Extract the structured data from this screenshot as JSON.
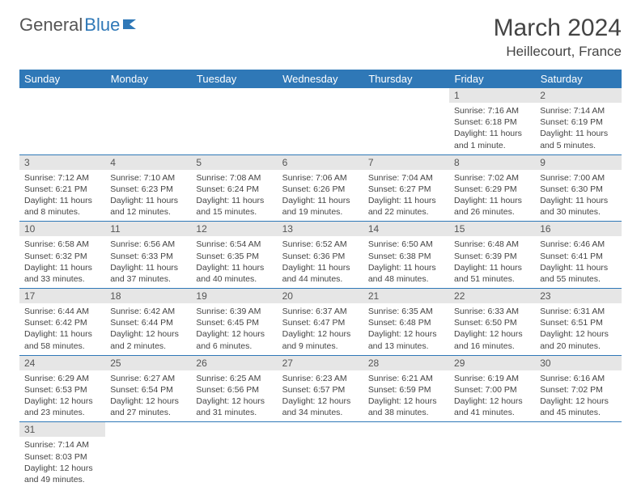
{
  "brand": {
    "part1": "General",
    "part2": "Blue"
  },
  "title": {
    "month": "March 2024",
    "location": "Heillecourt, France"
  },
  "colors": {
    "header_bg": "#2f78b7",
    "header_fg": "#ffffff",
    "daynum_bg": "#e6e6e6",
    "border": "#2f78b7",
    "text": "#444444"
  },
  "weekdays": [
    "Sunday",
    "Monday",
    "Tuesday",
    "Wednesday",
    "Thursday",
    "Friday",
    "Saturday"
  ],
  "layout": {
    "columns": 7,
    "rows": 6,
    "firstWeekday": 5
  },
  "days": [
    {
      "n": 1,
      "sunrise": "7:16 AM",
      "sunset": "6:18 PM",
      "daylight": "11 hours and 1 minute."
    },
    {
      "n": 2,
      "sunrise": "7:14 AM",
      "sunset": "6:19 PM",
      "daylight": "11 hours and 5 minutes."
    },
    {
      "n": 3,
      "sunrise": "7:12 AM",
      "sunset": "6:21 PM",
      "daylight": "11 hours and 8 minutes."
    },
    {
      "n": 4,
      "sunrise": "7:10 AM",
      "sunset": "6:23 PM",
      "daylight": "11 hours and 12 minutes."
    },
    {
      "n": 5,
      "sunrise": "7:08 AM",
      "sunset": "6:24 PM",
      "daylight": "11 hours and 15 minutes."
    },
    {
      "n": 6,
      "sunrise": "7:06 AM",
      "sunset": "6:26 PM",
      "daylight": "11 hours and 19 minutes."
    },
    {
      "n": 7,
      "sunrise": "7:04 AM",
      "sunset": "6:27 PM",
      "daylight": "11 hours and 22 minutes."
    },
    {
      "n": 8,
      "sunrise": "7:02 AM",
      "sunset": "6:29 PM",
      "daylight": "11 hours and 26 minutes."
    },
    {
      "n": 9,
      "sunrise": "7:00 AM",
      "sunset": "6:30 PM",
      "daylight": "11 hours and 30 minutes."
    },
    {
      "n": 10,
      "sunrise": "6:58 AM",
      "sunset": "6:32 PM",
      "daylight": "11 hours and 33 minutes."
    },
    {
      "n": 11,
      "sunrise": "6:56 AM",
      "sunset": "6:33 PM",
      "daylight": "11 hours and 37 minutes."
    },
    {
      "n": 12,
      "sunrise": "6:54 AM",
      "sunset": "6:35 PM",
      "daylight": "11 hours and 40 minutes."
    },
    {
      "n": 13,
      "sunrise": "6:52 AM",
      "sunset": "6:36 PM",
      "daylight": "11 hours and 44 minutes."
    },
    {
      "n": 14,
      "sunrise": "6:50 AM",
      "sunset": "6:38 PM",
      "daylight": "11 hours and 48 minutes."
    },
    {
      "n": 15,
      "sunrise": "6:48 AM",
      "sunset": "6:39 PM",
      "daylight": "11 hours and 51 minutes."
    },
    {
      "n": 16,
      "sunrise": "6:46 AM",
      "sunset": "6:41 PM",
      "daylight": "11 hours and 55 minutes."
    },
    {
      "n": 17,
      "sunrise": "6:44 AM",
      "sunset": "6:42 PM",
      "daylight": "11 hours and 58 minutes."
    },
    {
      "n": 18,
      "sunrise": "6:42 AM",
      "sunset": "6:44 PM",
      "daylight": "12 hours and 2 minutes."
    },
    {
      "n": 19,
      "sunrise": "6:39 AM",
      "sunset": "6:45 PM",
      "daylight": "12 hours and 6 minutes."
    },
    {
      "n": 20,
      "sunrise": "6:37 AM",
      "sunset": "6:47 PM",
      "daylight": "12 hours and 9 minutes."
    },
    {
      "n": 21,
      "sunrise": "6:35 AM",
      "sunset": "6:48 PM",
      "daylight": "12 hours and 13 minutes."
    },
    {
      "n": 22,
      "sunrise": "6:33 AM",
      "sunset": "6:50 PM",
      "daylight": "12 hours and 16 minutes."
    },
    {
      "n": 23,
      "sunrise": "6:31 AM",
      "sunset": "6:51 PM",
      "daylight": "12 hours and 20 minutes."
    },
    {
      "n": 24,
      "sunrise": "6:29 AM",
      "sunset": "6:53 PM",
      "daylight": "12 hours and 23 minutes."
    },
    {
      "n": 25,
      "sunrise": "6:27 AM",
      "sunset": "6:54 PM",
      "daylight": "12 hours and 27 minutes."
    },
    {
      "n": 26,
      "sunrise": "6:25 AM",
      "sunset": "6:56 PM",
      "daylight": "12 hours and 31 minutes."
    },
    {
      "n": 27,
      "sunrise": "6:23 AM",
      "sunset": "6:57 PM",
      "daylight": "12 hours and 34 minutes."
    },
    {
      "n": 28,
      "sunrise": "6:21 AM",
      "sunset": "6:59 PM",
      "daylight": "12 hours and 38 minutes."
    },
    {
      "n": 29,
      "sunrise": "6:19 AM",
      "sunset": "7:00 PM",
      "daylight": "12 hours and 41 minutes."
    },
    {
      "n": 30,
      "sunrise": "6:16 AM",
      "sunset": "7:02 PM",
      "daylight": "12 hours and 45 minutes."
    },
    {
      "n": 31,
      "sunrise": "7:14 AM",
      "sunset": "8:03 PM",
      "daylight": "12 hours and 49 minutes."
    }
  ],
  "labels": {
    "sunrise": "Sunrise:",
    "sunset": "Sunset:",
    "daylight": "Daylight:"
  }
}
